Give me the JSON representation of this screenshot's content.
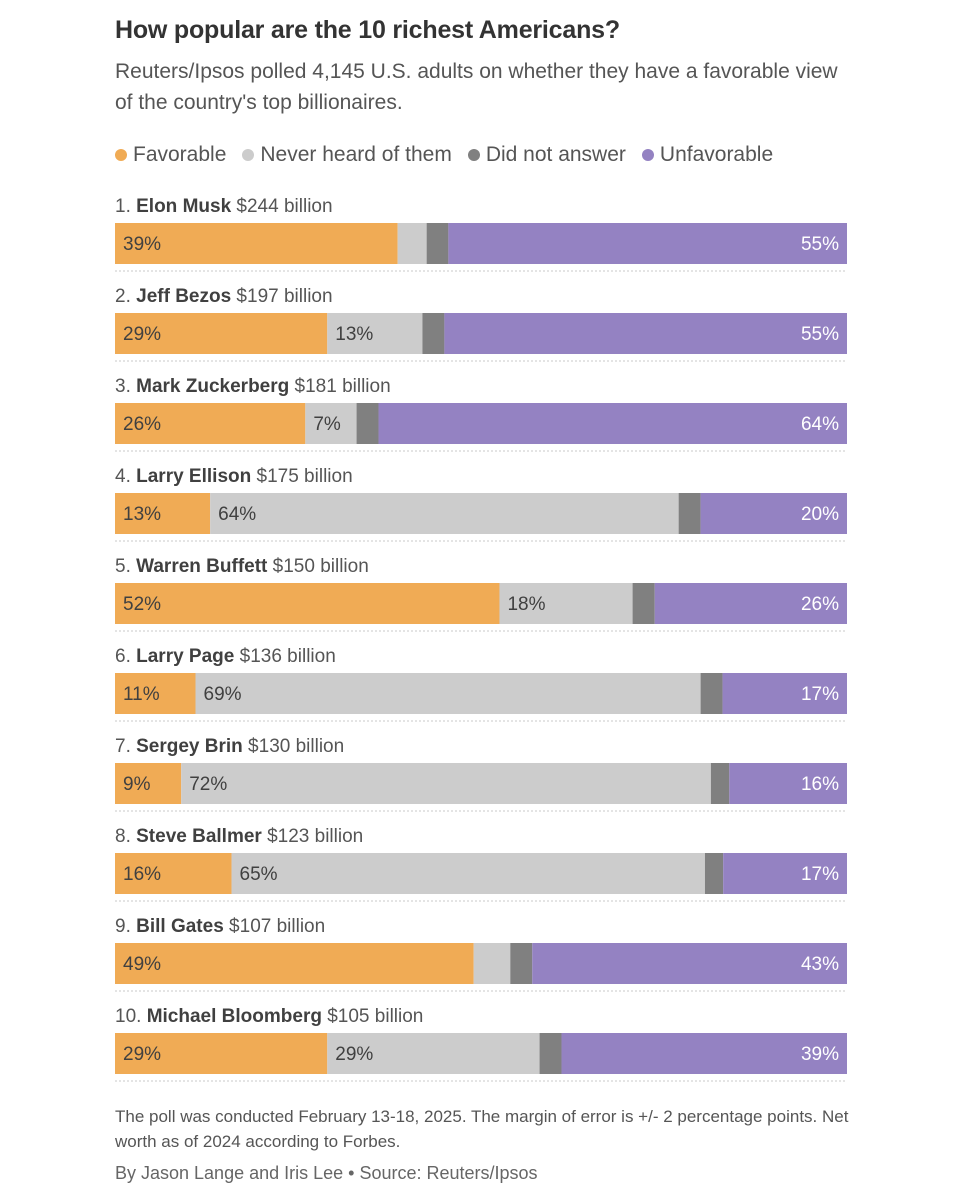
{
  "chart_data": {
    "type": "bar",
    "orientation": "horizontal",
    "stacked": true,
    "title": "How popular are the 10 richest Americans?",
    "subtitle": "Reuters/Ipsos polled 4,145 U.S. adults on whether they have a favorable view of the country's top billionaires.",
    "legend_position": "top",
    "series": [
      {
        "key": "favorable",
        "name": "Favorable",
        "color": "#f0ab55"
      },
      {
        "key": "never",
        "name": "Never heard of them",
        "color": "#cccccc"
      },
      {
        "key": "no_answer",
        "name": "Did not answer",
        "color": "#808080"
      },
      {
        "key": "unfavorable",
        "name": "Unfavorable",
        "color": "#9482c2"
      }
    ],
    "rows": [
      {
        "rank": "1.",
        "name": "Elon Musk",
        "worth": "$244 billion",
        "values": {
          "favorable": 39,
          "never": 4,
          "no_answer": 3,
          "unfavorable": 55
        },
        "labels": {
          "favorable": "39%",
          "never": "",
          "unfavorable": "55%"
        }
      },
      {
        "rank": "2.",
        "name": "Jeff Bezos",
        "worth": "$197 billion",
        "values": {
          "favorable": 29,
          "never": 13,
          "no_answer": 3,
          "unfavorable": 55
        },
        "labels": {
          "favorable": "29%",
          "never": "13%",
          "unfavorable": "55%"
        }
      },
      {
        "rank": "3.",
        "name": "Mark Zuckerberg",
        "worth": "$181 billion",
        "values": {
          "favorable": 26,
          "never": 7,
          "no_answer": 3,
          "unfavorable": 64
        },
        "labels": {
          "favorable": "26%",
          "never": "7%",
          "unfavorable": "64%"
        }
      },
      {
        "rank": "4.",
        "name": "Larry Ellison",
        "worth": "$175 billion",
        "values": {
          "favorable": 13,
          "never": 64,
          "no_answer": 3,
          "unfavorable": 20
        },
        "labels": {
          "favorable": "13%",
          "never": "64%",
          "unfavorable": "20%"
        }
      },
      {
        "rank": "5.",
        "name": "Warren Buffett",
        "worth": "$150 billion",
        "values": {
          "favorable": 52,
          "never": 18,
          "no_answer": 3,
          "unfavorable": 26
        },
        "labels": {
          "favorable": "52%",
          "never": "18%",
          "unfavorable": "26%"
        }
      },
      {
        "rank": "6.",
        "name": "Larry Page",
        "worth": "$136 billion",
        "values": {
          "favorable": 11,
          "never": 69,
          "no_answer": 3,
          "unfavorable": 17
        },
        "labels": {
          "favorable": "11%",
          "never": "69%",
          "unfavorable": "17%"
        }
      },
      {
        "rank": "7.",
        "name": "Sergey Brin",
        "worth": "$130 billion",
        "values": {
          "favorable": 9,
          "never": 72,
          "no_answer": 2.5,
          "unfavorable": 16
        },
        "labels": {
          "favorable": "9%",
          "never": "72%",
          "unfavorable": "16%"
        }
      },
      {
        "rank": "8.",
        "name": "Steve Ballmer",
        "worth": "$123 billion",
        "values": {
          "favorable": 16,
          "never": 65,
          "no_answer": 2.5,
          "unfavorable": 17
        },
        "labels": {
          "favorable": "16%",
          "never": "65%",
          "unfavorable": "17%"
        }
      },
      {
        "rank": "9.",
        "name": "Bill Gates",
        "worth": "$107 billion",
        "values": {
          "favorable": 49,
          "never": 5,
          "no_answer": 3,
          "unfavorable": 43
        },
        "labels": {
          "favorable": "49%",
          "never": "",
          "unfavorable": "43%"
        }
      },
      {
        "rank": "10.",
        "name": "Michael Bloomberg",
        "worth": "$105 billion",
        "values": {
          "favorable": 29,
          "never": 29,
          "no_answer": 3,
          "unfavorable": 39
        },
        "labels": {
          "favorable": "29%",
          "never": "29%",
          "unfavorable": "39%"
        }
      }
    ]
  },
  "footer": {
    "note": "The poll was conducted February 13-18, 2025. The margin of error is +/- 2 percentage points. Net worth as of 2024 according to Forbes.",
    "credit": "By Jason Lange and Iris Lee • Source: Reuters/Ipsos"
  }
}
